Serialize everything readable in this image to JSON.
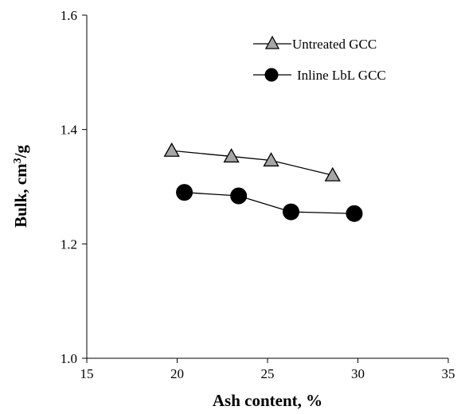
{
  "chart_data": {
    "type": "line",
    "xlabel": "Ash content, %",
    "ylabel_main": "Bulk, cm",
    "ylabel_sup": "3",
    "ylabel_tail": "/g",
    "xlim": [
      15,
      35
    ],
    "ylim": [
      1.0,
      1.6
    ],
    "xticks": [
      "15",
      "20",
      "25",
      "30",
      "35"
    ],
    "yticks": [
      "1.0",
      "1.2",
      "1.4",
      "1.6"
    ],
    "grid": false,
    "legend_position": "top-right",
    "series": [
      {
        "name": "Untreated GCC",
        "marker": "triangle",
        "color": "#a6a6a6",
        "x": [
          19.7,
          23.0,
          25.2,
          28.6
        ],
        "y": [
          1.363,
          1.353,
          1.346,
          1.32
        ]
      },
      {
        "name": "Inline LbL GCC",
        "marker": "circle",
        "color": "#000000",
        "x": [
          20.4,
          23.4,
          26.3,
          29.8
        ],
        "y": [
          1.29,
          1.284,
          1.256,
          1.253
        ]
      }
    ]
  }
}
